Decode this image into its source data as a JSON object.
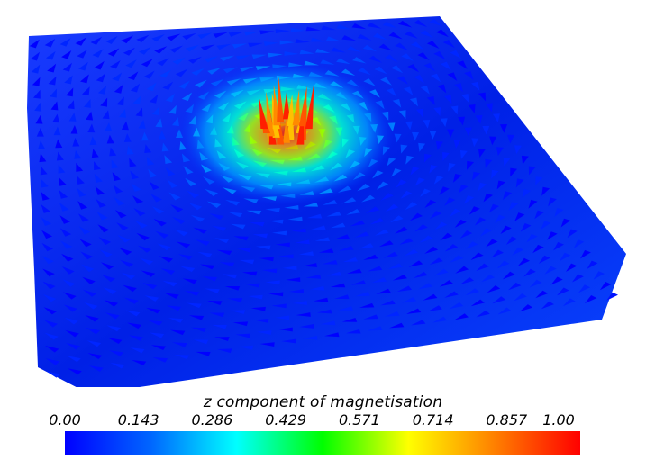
{
  "figure": {
    "description_type": "vector-field-vortex",
    "colormap": {
      "stops": [
        "#0000ff",
        "#0066ff",
        "#00ffff",
        "#00ff00",
        "#ffff00",
        "#ff8000",
        "#ff0000"
      ]
    }
  },
  "legend": {
    "title": "z component of magnetisation",
    "ticks": [
      "0.00",
      "0.143",
      "0.286",
      "0.429",
      "0.571",
      "0.714",
      "0.857",
      "1.00"
    ],
    "range": [
      0,
      1
    ]
  }
}
